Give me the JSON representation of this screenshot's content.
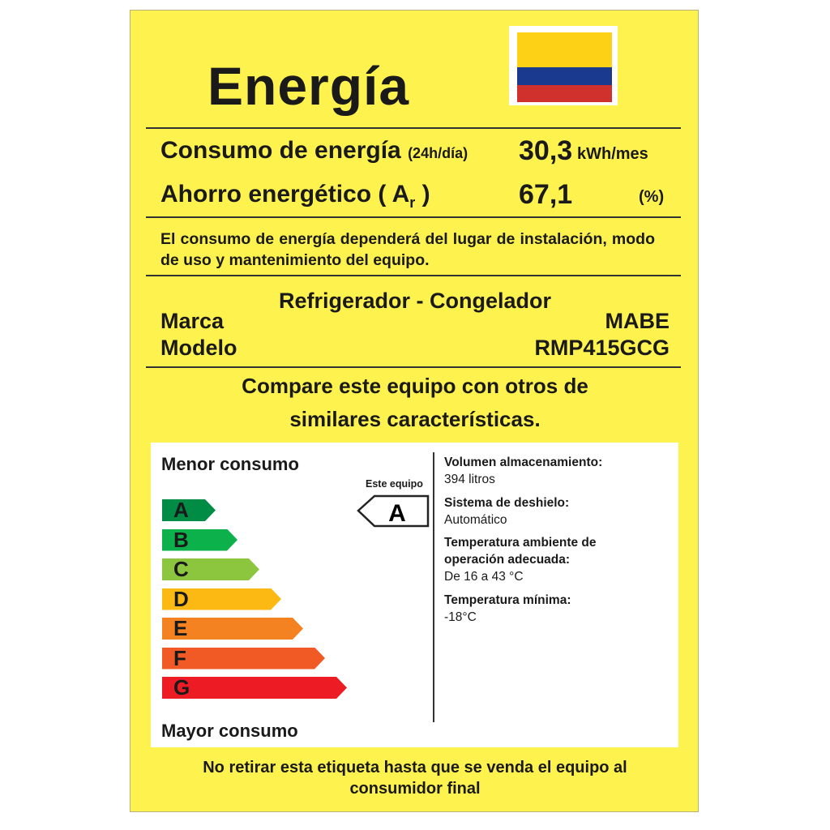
{
  "header": {
    "title": "Energía",
    "flag_colors": [
      "#fcd116",
      "#003893",
      "#ce1126"
    ]
  },
  "consumption": {
    "label": "Consumo de energía",
    "qualifier": "(24h/día)",
    "value": "30,3",
    "unit": "kWh/mes"
  },
  "savings": {
    "label": "Ahorro energético ( A",
    "subscript": "r",
    "close": " )",
    "value": "67,1",
    "unit": "(%)"
  },
  "note": "El consumo de energía dependerá del lugar de instalación, modo de uso y mantenimiento del equipo.",
  "product": {
    "type": "Refrigerador - Congelador",
    "brand_label": "Marca",
    "brand": "MABE",
    "model_label": "Modelo",
    "model": "RMP415GCG"
  },
  "compare": {
    "line1": "Compare este equipo con otros de",
    "line2": "similares características."
  },
  "scale": {
    "top_label": "Menor consumo",
    "bottom_label": "Mayor consumo",
    "classes": [
      {
        "letter": "A",
        "color": "#008c45"
      },
      {
        "letter": "B",
        "color": "#0db14b"
      },
      {
        "letter": "C",
        "color": "#8cc63f"
      },
      {
        "letter": "D",
        "color": "#fdb913"
      },
      {
        "letter": "E",
        "color": "#f58220"
      },
      {
        "letter": "F",
        "color": "#f15a24"
      },
      {
        "letter": "G",
        "color": "#ed1c24"
      }
    ],
    "this_unit_label": "Este equipo",
    "this_unit_class": "A"
  },
  "specs": [
    {
      "title": "Volumen almacenamiento:",
      "value": "394 litros"
    },
    {
      "title": "Sistema de deshielo:",
      "value": "Automático"
    },
    {
      "title": "Temperatura ambiente de operación adecuada:",
      "value": "De 16 a 43 °C"
    },
    {
      "title": "Temperatura mínima:",
      "value": "-18°C"
    }
  ],
  "footer": {
    "line1": "No retirar esta etiqueta hasta que se venda el equipo al",
    "line2": "consumidor final"
  }
}
